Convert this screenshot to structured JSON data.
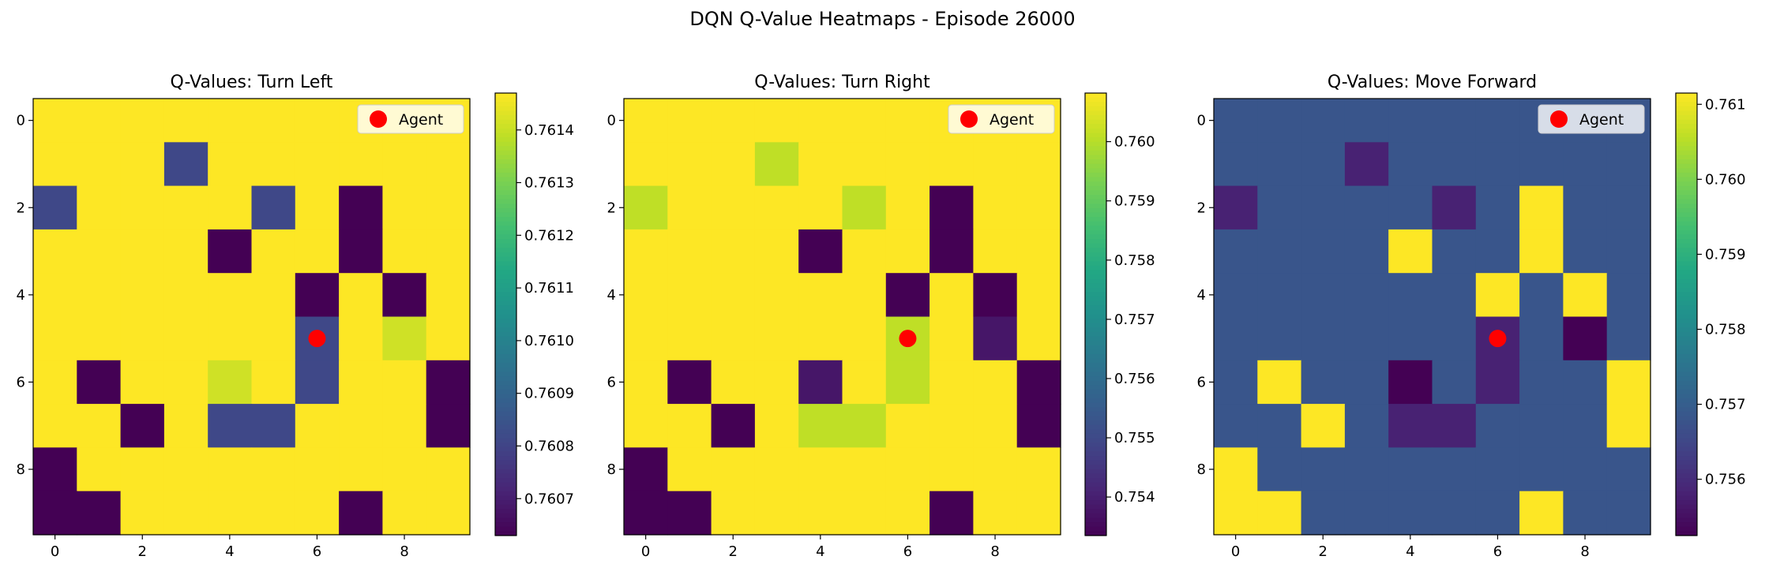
{
  "figure": {
    "title": "DQN Q-Value Heatmaps - Episode 26000"
  },
  "chart_data": [
    {
      "type": "heatmap",
      "title": "Q-Values: Turn Left",
      "xlabel": "",
      "ylabel": "",
      "colormap": "viridis",
      "x_ticks": [
        "0",
        "2",
        "4",
        "6",
        "8"
      ],
      "y_ticks": [
        "0",
        "2",
        "4",
        "6",
        "8"
      ],
      "vmin": 0.76063,
      "vmax": 0.76147,
      "colorbar_ticks": [
        "0.7614",
        "0.7613",
        "0.7612",
        "0.7611",
        "0.7610",
        "0.7609",
        "0.7608",
        "0.7607"
      ],
      "colorbar_tick_values": [
        0.7614,
        0.7613,
        0.7612,
        0.7611,
        0.761,
        0.7609,
        0.7608,
        0.7607
      ],
      "agent": {
        "row": 5,
        "col": 6,
        "label": "Agent",
        "color": "#ff0000"
      },
      "legend": "top-right",
      "values": [
        [
          0.76147,
          0.76147,
          0.76147,
          0.76147,
          0.76147,
          0.76147,
          0.76147,
          0.76147,
          0.76147,
          0.76147
        ],
        [
          0.76147,
          0.76147,
          0.76147,
          0.76081,
          0.76147,
          0.76147,
          0.76147,
          0.76147,
          0.76147,
          0.76147
        ],
        [
          0.76081,
          0.76147,
          0.76147,
          0.76147,
          0.76147,
          0.76081,
          0.76147,
          0.76063,
          0.76147,
          0.76147
        ],
        [
          0.76147,
          0.76147,
          0.76147,
          0.76147,
          0.76063,
          0.76147,
          0.76147,
          0.76063,
          0.76147,
          0.76147
        ],
        [
          0.76147,
          0.76147,
          0.76147,
          0.76147,
          0.76147,
          0.76147,
          0.76063,
          0.76147,
          0.76063,
          0.76147
        ],
        [
          0.76147,
          0.76147,
          0.76147,
          0.76147,
          0.76147,
          0.76147,
          0.76081,
          0.76147,
          0.76141,
          0.76147
        ],
        [
          0.76147,
          0.76063,
          0.76147,
          0.76147,
          0.76141,
          0.76147,
          0.76081,
          0.76147,
          0.76147,
          0.76063
        ],
        [
          0.76147,
          0.76147,
          0.76063,
          0.76147,
          0.76081,
          0.76081,
          0.76147,
          0.76147,
          0.76147,
          0.76063
        ],
        [
          0.76063,
          0.76147,
          0.76147,
          0.76147,
          0.76147,
          0.76147,
          0.76147,
          0.76147,
          0.76147,
          0.76147
        ],
        [
          0.76063,
          0.76063,
          0.76147,
          0.76147,
          0.76147,
          0.76147,
          0.76147,
          0.76063,
          0.76147,
          0.76147
        ]
      ]
    },
    {
      "type": "heatmap",
      "title": "Q-Values: Turn Right",
      "xlabel": "",
      "ylabel": "",
      "colormap": "viridis",
      "x_ticks": [
        "0",
        "2",
        "4",
        "6",
        "8"
      ],
      "y_ticks": [
        "0",
        "2",
        "4",
        "6",
        "8"
      ],
      "vmin": 0.75335,
      "vmax": 0.76082,
      "colorbar_ticks": [
        "0.760",
        "0.759",
        "0.758",
        "0.757",
        "0.756",
        "0.755",
        "0.754"
      ],
      "colorbar_tick_values": [
        0.76,
        0.759,
        0.758,
        0.757,
        0.756,
        0.755,
        0.754
      ],
      "agent": {
        "row": 5,
        "col": 6,
        "label": "Agent",
        "color": "#ff0000"
      },
      "legend": "top-right",
      "values": [
        [
          0.76082,
          0.76082,
          0.76082,
          0.76082,
          0.76082,
          0.76082,
          0.76082,
          0.76082,
          0.76082,
          0.76082
        ],
        [
          0.76082,
          0.76082,
          0.76082,
          0.7601,
          0.76082,
          0.76082,
          0.76082,
          0.76082,
          0.76082,
          0.76082
        ],
        [
          0.7601,
          0.76082,
          0.76082,
          0.76082,
          0.76082,
          0.7601,
          0.76082,
          0.75335,
          0.76082,
          0.76082
        ],
        [
          0.76082,
          0.76082,
          0.76082,
          0.76082,
          0.75335,
          0.76082,
          0.76082,
          0.75335,
          0.76082,
          0.76082
        ],
        [
          0.76082,
          0.76082,
          0.76082,
          0.76082,
          0.76082,
          0.76082,
          0.75335,
          0.76082,
          0.75335,
          0.76082
        ],
        [
          0.76082,
          0.76082,
          0.76082,
          0.76082,
          0.76082,
          0.76082,
          0.7601,
          0.76082,
          0.7538,
          0.76082
        ],
        [
          0.76082,
          0.75335,
          0.76082,
          0.76082,
          0.7538,
          0.76082,
          0.7601,
          0.76082,
          0.76082,
          0.75335
        ],
        [
          0.76082,
          0.76082,
          0.75335,
          0.76082,
          0.7601,
          0.7601,
          0.76082,
          0.76082,
          0.76082,
          0.75335
        ],
        [
          0.75335,
          0.76082,
          0.76082,
          0.76082,
          0.76082,
          0.76082,
          0.76082,
          0.76082,
          0.76082,
          0.76082
        ],
        [
          0.75335,
          0.75335,
          0.76082,
          0.76082,
          0.76082,
          0.76082,
          0.76082,
          0.75335,
          0.76082,
          0.76082
        ]
      ]
    },
    {
      "type": "heatmap",
      "title": "Q-Values: Move Forward",
      "xlabel": "",
      "ylabel": "",
      "colormap": "viridis",
      "x_ticks": [
        "0",
        "2",
        "4",
        "6",
        "8"
      ],
      "y_ticks": [
        "0",
        "2",
        "4",
        "6",
        "8"
      ],
      "vmin": 0.75525,
      "vmax": 0.76115,
      "colorbar_ticks": [
        "0.761",
        "0.760",
        "0.759",
        "0.758",
        "0.757",
        "0.756"
      ],
      "colorbar_tick_values": [
        0.761,
        0.76,
        0.759,
        0.758,
        0.757,
        0.756
      ],
      "agent": {
        "row": 5,
        "col": 6,
        "label": "Agent",
        "color": "#ff0000"
      },
      "legend": "top-right",
      "values": [
        [
          0.7568,
          0.7568,
          0.7568,
          0.7568,
          0.7568,
          0.7568,
          0.7568,
          0.7568,
          0.7568,
          0.7568
        ],
        [
          0.7568,
          0.7568,
          0.7568,
          0.7558,
          0.7568,
          0.7568,
          0.7568,
          0.7568,
          0.7568,
          0.7568
        ],
        [
          0.7558,
          0.7568,
          0.7568,
          0.7568,
          0.7568,
          0.7558,
          0.7568,
          0.76115,
          0.7568,
          0.7568
        ],
        [
          0.7568,
          0.7568,
          0.7568,
          0.7568,
          0.76115,
          0.7568,
          0.7568,
          0.76115,
          0.7568,
          0.7568
        ],
        [
          0.7568,
          0.7568,
          0.7568,
          0.7568,
          0.7568,
          0.7568,
          0.76115,
          0.7568,
          0.76115,
          0.7568
        ],
        [
          0.7568,
          0.7568,
          0.7568,
          0.7568,
          0.7568,
          0.7568,
          0.7558,
          0.7568,
          0.75525,
          0.7568
        ],
        [
          0.7568,
          0.76115,
          0.7568,
          0.7568,
          0.75525,
          0.7568,
          0.7558,
          0.7568,
          0.7568,
          0.76115
        ],
        [
          0.7568,
          0.7568,
          0.76115,
          0.7568,
          0.7558,
          0.7558,
          0.7568,
          0.7568,
          0.7568,
          0.76115
        ],
        [
          0.76115,
          0.7568,
          0.7568,
          0.7568,
          0.7568,
          0.7568,
          0.7568,
          0.7568,
          0.7568,
          0.7568
        ],
        [
          0.76115,
          0.76115,
          0.7568,
          0.7568,
          0.7568,
          0.7568,
          0.7568,
          0.76115,
          0.7568,
          0.7568
        ]
      ]
    }
  ]
}
